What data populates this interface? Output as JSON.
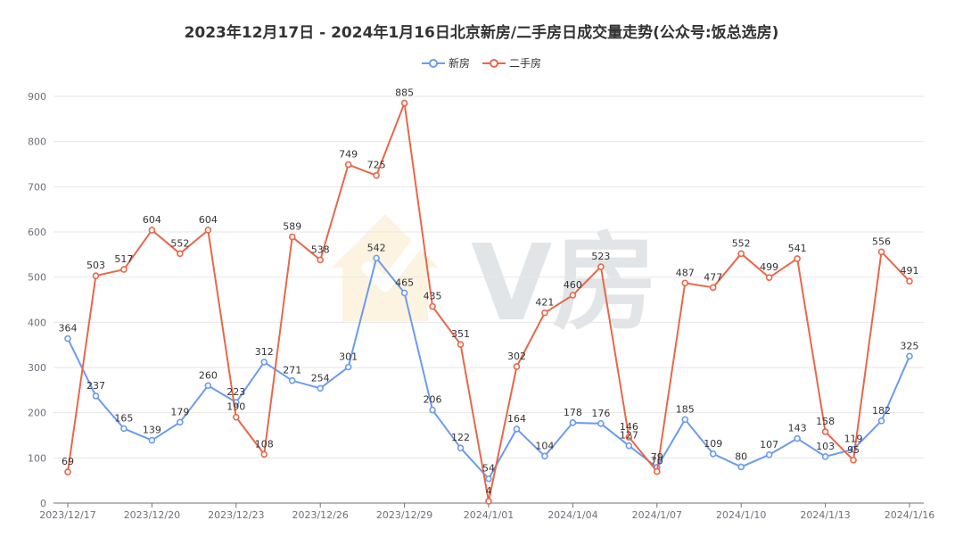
{
  "chart_data": {
    "type": "line",
    "title": "2023年12月17日 - 2024年1月16日北京新房/二手房日成交量走势(公众号:饭总选房)",
    "x": [
      "2023/12/17",
      "2023/12/18",
      "2023/12/19",
      "2023/12/20",
      "2023/12/21",
      "2023/12/22",
      "2023/12/23",
      "2023/12/24",
      "2023/12/25",
      "2023/12/26",
      "2023/12/27",
      "2023/12/28",
      "2023/12/29",
      "2023/12/30",
      "2023/12/31",
      "2024/1/01",
      "2024/1/02",
      "2024/1/03",
      "2024/1/04",
      "2024/1/05",
      "2024/1/06",
      "2024/1/07",
      "2024/1/08",
      "2024/1/09",
      "2024/1/10",
      "2024/1/11",
      "2024/1/12",
      "2024/1/13",
      "2024/1/14",
      "2024/1/15",
      "2024/1/16"
    ],
    "x_tick_labels": [
      "2023/12/17",
      "2023/12/20",
      "2023/12/23",
      "2023/12/26",
      "2023/12/29",
      "2024/1/01",
      "2024/1/04",
      "2024/1/07",
      "2024/1/10",
      "2024/1/13",
      "2024/1/16"
    ],
    "x_tick_every": 3,
    "ylim": [
      0,
      900
    ],
    "y_ticks": [
      0,
      100,
      200,
      300,
      400,
      500,
      600,
      700,
      800,
      900
    ],
    "grid": true,
    "legend_position": "top-center",
    "series": [
      {
        "name": "新房",
        "color": "#6b9bf2",
        "values": [
          364,
          237,
          165,
          139,
          179,
          260,
          223,
          312,
          271,
          254,
          301,
          542,
          465,
          206,
          122,
          54,
          164,
          104,
          178,
          176,
          127,
          79,
          185,
          109,
          80,
          107,
          143,
          103,
          119,
          182,
          325
        ],
        "labels": [
          "364",
          "237",
          "165",
          "139",
          "179",
          "260",
          "223",
          "312",
          "271",
          "254",
          "301",
          "542",
          "465",
          "206",
          "122",
          "54",
          "164",
          "104",
          "178",
          "176",
          "127",
          "79",
          "185",
          "109",
          "80",
          "107",
          "143",
          "103",
          "119",
          "182",
          "325"
        ]
      },
      {
        "name": "二手房",
        "color": "#e8674a",
        "values": [
          69,
          503,
          517,
          604,
          552,
          604,
          190,
          108,
          589,
          538,
          749,
          725,
          885,
          435,
          351,
          4,
          302,
          421,
          460,
          523,
          146,
          70,
          487,
          477,
          552,
          499,
          541,
          158,
          95,
          556,
          491
        ],
        "labels": [
          "69",
          "503",
          "517",
          "604",
          "552",
          "604",
          "190",
          "108",
          "589",
          "538",
          "749",
          "725",
          "885",
          "435",
          "351",
          "4",
          "302",
          "421",
          "460",
          "523",
          "146",
          "70",
          "487",
          "477",
          "552",
          "499",
          "541",
          "158",
          "95",
          "556",
          "491"
        ]
      }
    ]
  },
  "watermark": {
    "text": "V房"
  }
}
